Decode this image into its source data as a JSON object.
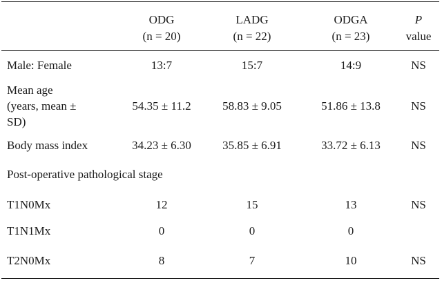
{
  "header": {
    "columns": [
      {
        "name": "ODG",
        "n": "(n = 20)"
      },
      {
        "name": "LADG",
        "n": "(n = 22)"
      },
      {
        "name": "ODGA",
        "n": "(n = 23)"
      }
    ],
    "p_label_italic": "P",
    "p_label_rest": "value"
  },
  "rows": {
    "sex": {
      "label": "Male: Female",
      "values": [
        "13:7",
        "15:7",
        "14:9"
      ],
      "p": "NS"
    },
    "age": {
      "label_lines": [
        "Mean age",
        "(years, mean ±",
        "SD)"
      ],
      "values": [
        "54.35 ± 11.2",
        "58.83 ± 9.05",
        "51.86 ± 13.8"
      ],
      "p": "NS"
    },
    "bmi": {
      "label": "Body mass index",
      "values": [
        "34.23 ± 6.30",
        "35.85 ± 6.91",
        "33.72 ± 6.13"
      ],
      "p": "NS"
    },
    "stage_heading": {
      "label": "Post-operative pathological stage"
    },
    "t1n0": {
      "label": "T1N0Mx",
      "values": [
        "12",
        "15",
        "13"
      ],
      "p": "NS"
    },
    "t1n1": {
      "label": "T1N1Mx",
      "values": [
        "0",
        "0",
        "0"
      ],
      "p": ""
    },
    "t2n0": {
      "label": "T2N0Mx",
      "values": [
        "8",
        "7",
        "10"
      ],
      "p": "NS"
    }
  }
}
